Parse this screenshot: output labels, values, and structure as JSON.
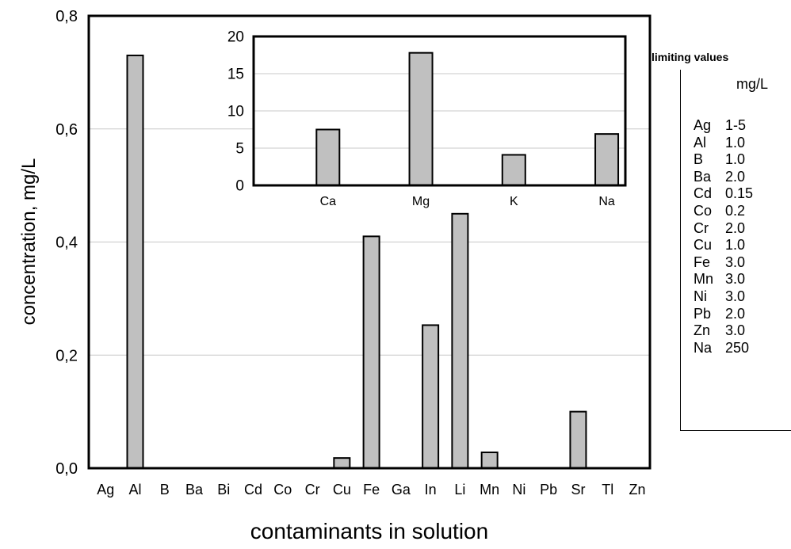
{
  "chart_data": [
    {
      "type": "bar",
      "xlabel": "contaminants in solution",
      "ylabel": "concentration, mg/L",
      "ylim": [
        0,
        0.8
      ],
      "yticks": [
        "0,0",
        "0,2",
        "0,4",
        "0,6",
        "0,8"
      ],
      "grid": true,
      "categories": [
        "Ag",
        "Al",
        "B",
        "Ba",
        "Bi",
        "Cd",
        "Co",
        "Cr",
        "Cu",
        "Fe",
        "Ga",
        "In",
        "Li",
        "Mn",
        "Ni",
        "Pb",
        "Sr",
        "Tl",
        "Zn"
      ],
      "values": [
        0,
        0.73,
        0,
        0,
        0,
        0,
        0,
        0,
        0.018,
        0.41,
        0,
        0.253,
        0.45,
        0.028,
        0,
        0,
        0.1,
        0,
        0
      ],
      "bar_color": "#c0c0c0"
    },
    {
      "type": "bar",
      "xlabel": "",
      "ylabel": "",
      "ylim": [
        0,
        20
      ],
      "yticks": [
        "0",
        "5",
        "10",
        "15",
        "20"
      ],
      "grid": true,
      "categories": [
        "Ca",
        "Mg",
        "K",
        "Na"
      ],
      "values": [
        7.5,
        17.8,
        4.1,
        6.9
      ],
      "bar_color": "#c0c0c0"
    }
  ],
  "legend": {
    "title": "limiting values",
    "unit": "mg/L",
    "rows": [
      {
        "element": "Ag",
        "value": "1-5"
      },
      {
        "element": "Al",
        "value": "1.0"
      },
      {
        "element": "B",
        "value": "1.0"
      },
      {
        "element": "Ba",
        "value": "2.0"
      },
      {
        "element": "Cd",
        "value": "0.15"
      },
      {
        "element": "Co",
        "value": "0.2"
      },
      {
        "element": "Cr",
        "value": "2.0"
      },
      {
        "element": "Cu",
        "value": "1.0"
      },
      {
        "element": "Fe",
        "value": "3.0"
      },
      {
        "element": "Mn",
        "value": "3.0"
      },
      {
        "element": "Ni",
        "value": "3.0"
      },
      {
        "element": "Pb",
        "value": "2.0"
      },
      {
        "element": "Zn",
        "value": "3.0"
      },
      {
        "element": "Na",
        "value": "250"
      }
    ]
  }
}
